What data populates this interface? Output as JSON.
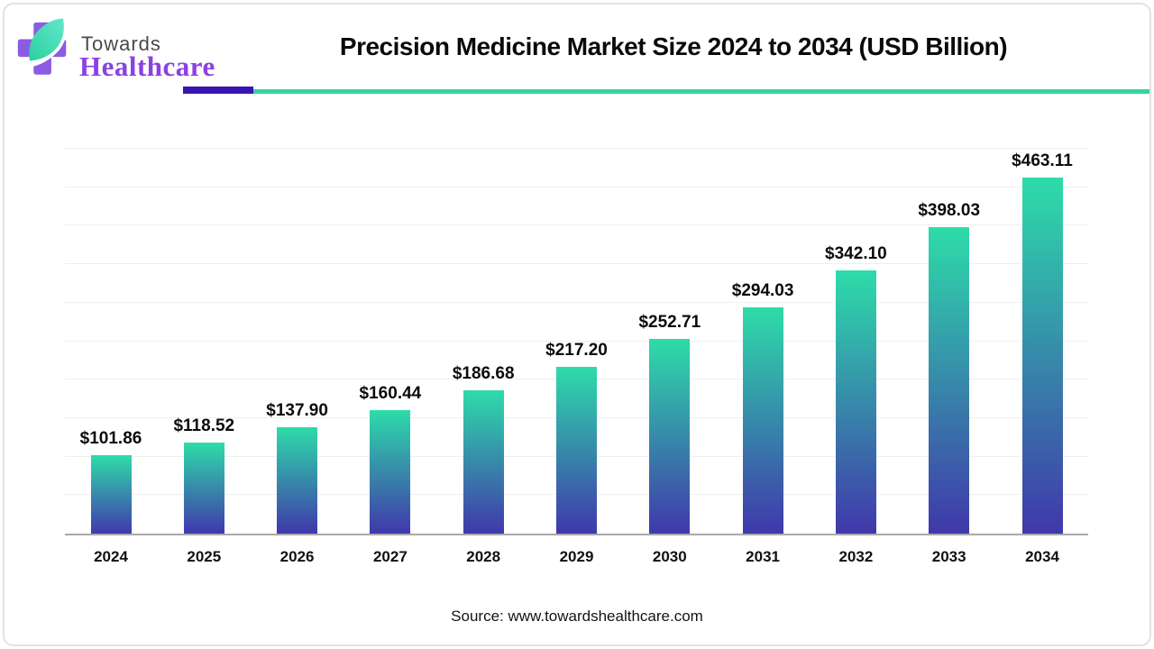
{
  "logo": {
    "line1": "Towards",
    "line2": "Healthcare"
  },
  "title": "Precision Medicine Market Size 2024 to 2034 (USD Billion)",
  "source": "Source: www.towardshealthcare.com",
  "colors": {
    "accent_rule_purple": "#3914b4",
    "accent_rule_teal": "#33d4a4",
    "bar_gradient_top": "#2edca9",
    "bar_gradient_bottom": "#4038ab",
    "logo_cross_purple": "#8c5be4",
    "logo_leaf_teal_light": "#63e8c8",
    "logo_leaf_teal_dark": "#2bcfa2",
    "gridline": "#efefef",
    "axis_line": "#a9a9a9"
  },
  "chart_data": {
    "type": "bar",
    "title": "Precision Medicine Market Size 2024 to 2034 (USD Billion)",
    "categories": [
      "2024",
      "2025",
      "2026",
      "2027",
      "2028",
      "2029",
      "2030",
      "2031",
      "2032",
      "2033",
      "2034"
    ],
    "values": [
      101.86,
      118.52,
      137.9,
      160.44,
      186.68,
      217.2,
      252.71,
      294.03,
      342.1,
      398.03,
      463.11
    ],
    "value_prefix": "$",
    "unit": "USD Billion",
    "xlabel": "",
    "ylabel": "",
    "ylim": [
      0,
      500
    ],
    "grid_step": 50,
    "grid": "horizontal-only",
    "y_tick_labels": "none",
    "legend": "none",
    "data_labels": "above-bars"
  }
}
